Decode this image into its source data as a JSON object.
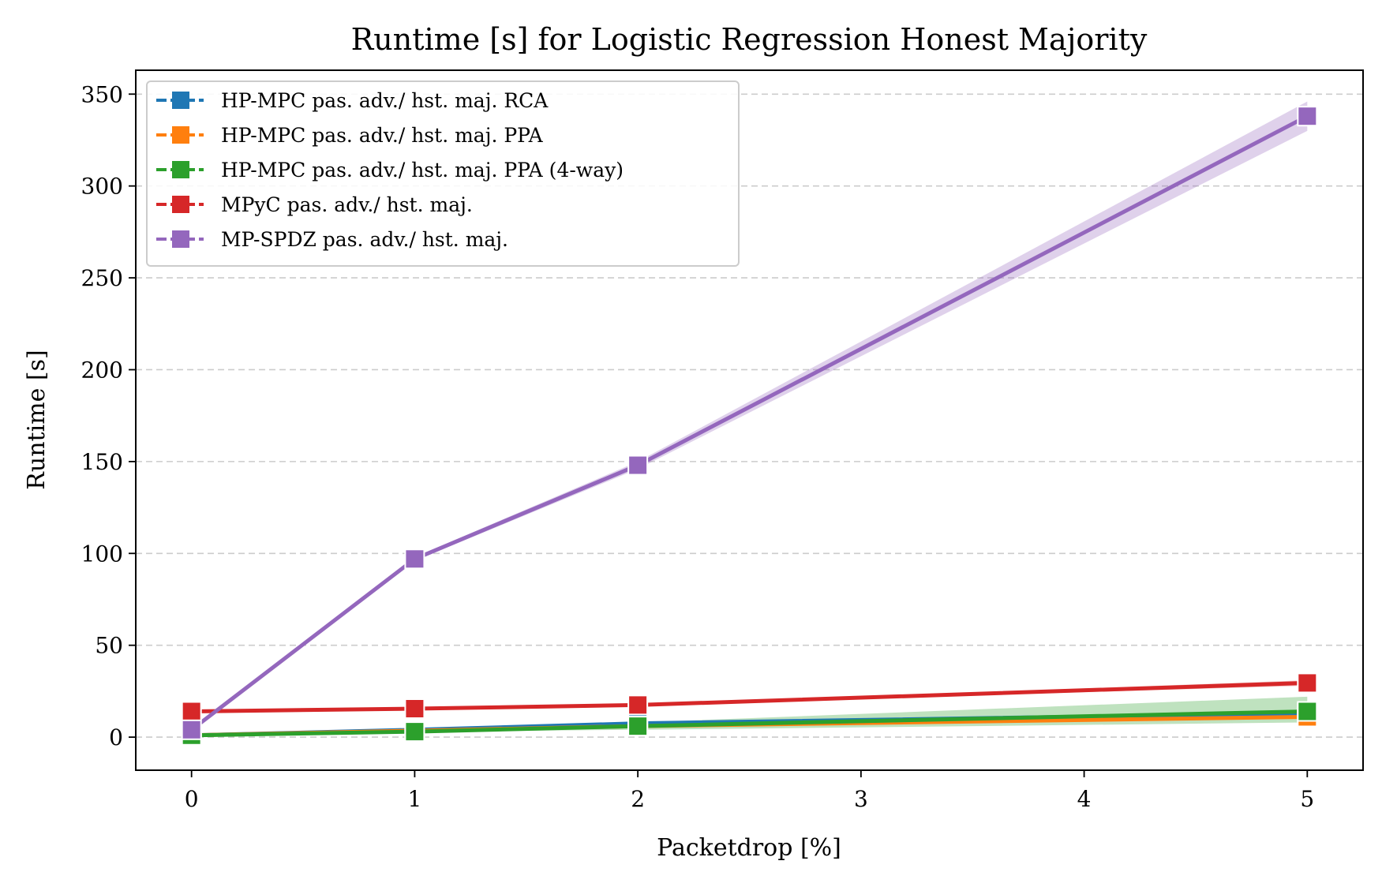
{
  "chart_data": {
    "type": "line",
    "title": "Runtime [s] for Logistic Regression Honest Majority",
    "xlabel": "Packetdrop [%]",
    "ylabel": "Runtime [s]",
    "xlim": [
      -0.25,
      5.25
    ],
    "ylim": [
      -18,
      363
    ],
    "xticks": [
      0,
      1,
      2,
      3,
      4,
      5
    ],
    "yticks": [
      0,
      50,
      100,
      150,
      200,
      250,
      300,
      350
    ],
    "grid": "horizontal dashed",
    "legend_position": "top-left",
    "x": [
      0,
      1,
      2,
      5
    ],
    "series": [
      {
        "name": "HP-MPC pas. adv./ hst. maj. RCA",
        "color": "#1f77b4",
        "values": [
          1,
          4,
          7.5,
          13
        ],
        "band_low": [
          1,
          4,
          7.5,
          12
        ],
        "band_high": [
          1,
          4,
          7.5,
          14
        ]
      },
      {
        "name": "HP-MPC pas. adv./ hst. maj. PPA",
        "color": "#ff7f0e",
        "values": [
          1,
          3.5,
          6,
          11
        ],
        "band_low": [
          1,
          3.5,
          6,
          10
        ],
        "band_high": [
          1,
          3.5,
          6,
          12
        ]
      },
      {
        "name": "HP-MPC pas. adv./ hst. maj. PPA (4-way)",
        "color": "#2ca02c",
        "values": [
          1,
          3,
          6,
          14
        ],
        "band_low": [
          1,
          3,
          4,
          8
        ],
        "band_high": [
          1,
          3,
          8,
          22
        ]
      },
      {
        "name": "MPyC pas. adv./ hst. maj.",
        "color": "#d62728",
        "values": [
          14,
          15.5,
          17.5,
          29.5
        ],
        "band_low": [
          14,
          15.5,
          17.5,
          28
        ],
        "band_high": [
          14,
          15.5,
          17.5,
          31
        ]
      },
      {
        "name": "MP-SPDZ pas. adv./ hst. maj.",
        "color": "#9467bd",
        "values": [
          4,
          97,
          148,
          338
        ],
        "band_low": [
          4,
          96,
          146,
          330
        ],
        "band_high": [
          4,
          98,
          150,
          346
        ]
      }
    ]
  }
}
